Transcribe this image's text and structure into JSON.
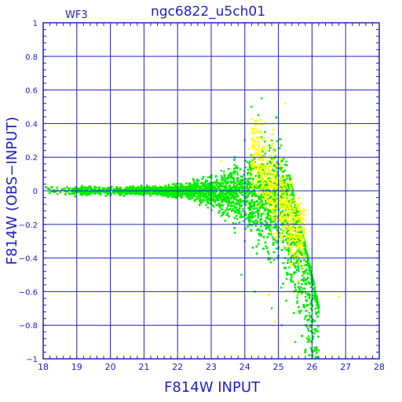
{
  "chart_data": {
    "type": "scatter",
    "title": "ngc6822_u5ch01",
    "corner_label": "WF3",
    "xlabel": "F814W  INPUT",
    "ylabel": "F814W  (OBS−INPUT)",
    "xlim": [
      18,
      28
    ],
    "ylim": [
      -1,
      1
    ],
    "x_ticks": [
      "18",
      "19",
      "20",
      "21",
      "22",
      "23",
      "24",
      "25",
      "26",
      "27",
      "28"
    ],
    "y_ticks": [
      "1",
      "0.8",
      "0.6",
      "0.4",
      "0.2",
      "0",
      "−0.2",
      "−0.4",
      "−0.6",
      "−0.8",
      "−1"
    ],
    "grid": true,
    "colors": {
      "axes": "#2020c8",
      "grid": "#2020c8",
      "series_green": "#00ee00",
      "series_yellow": "#ffff00"
    },
    "series": [
      {
        "color": "green",
        "points": [
          [
            18.2,
            0.01
          ],
          [
            18.5,
            -0.01
          ],
          [
            18.9,
            0.0
          ],
          [
            19.3,
            0.01
          ],
          [
            19.7,
            -0.01
          ],
          [
            20.1,
            0.0
          ],
          [
            20.5,
            0.01
          ],
          [
            20.9,
            -0.01
          ],
          [
            21.3,
            0.01
          ],
          [
            21.7,
            -0.02
          ],
          [
            22.1,
            0.02
          ],
          [
            22.5,
            0.05
          ],
          [
            22.5,
            -0.06
          ],
          [
            22.9,
            0.08
          ],
          [
            22.9,
            -0.1
          ],
          [
            23.3,
            0.12
          ],
          [
            23.3,
            -0.15
          ],
          [
            23.7,
            0.2
          ],
          [
            23.7,
            -0.25
          ],
          [
            24.0,
            0.3
          ],
          [
            24.0,
            -0.3
          ],
          [
            24.2,
            0.5
          ],
          [
            24.4,
            0.45
          ],
          [
            24.5,
            0.55
          ],
          [
            24.6,
            0.35
          ],
          [
            24.8,
            0.3
          ],
          [
            24.9,
            0.2
          ],
          [
            24.7,
            -0.4
          ],
          [
            25.0,
            -0.3
          ],
          [
            25.2,
            -0.4
          ],
          [
            25.4,
            -0.5
          ],
          [
            25.6,
            -0.55
          ],
          [
            25.8,
            -0.75
          ],
          [
            26.0,
            -0.9
          ],
          [
            26.2,
            -0.95
          ],
          [
            23.9,
            -0.5
          ],
          [
            24.3,
            -0.6
          ],
          [
            24.8,
            -0.7
          ],
          [
            25.1,
            -0.8
          ],
          [
            25.5,
            -0.9
          ]
        ]
      },
      {
        "color": "yellow",
        "points": [
          [
            24.5,
            0.2
          ],
          [
            24.8,
            0.15
          ],
          [
            25.0,
            0.05
          ],
          [
            25.1,
            -0.1
          ],
          [
            25.3,
            -0.25
          ],
          [
            25.5,
            -0.4
          ],
          [
            25.2,
            0.52
          ],
          [
            24.7,
            -0.62
          ],
          [
            24.9,
            -0.78
          ],
          [
            25.6,
            -0.62
          ],
          [
            23.3,
            0.18
          ],
          [
            24.1,
            0.25
          ],
          [
            26.8,
            -0.63
          ]
        ]
      }
    ]
  }
}
